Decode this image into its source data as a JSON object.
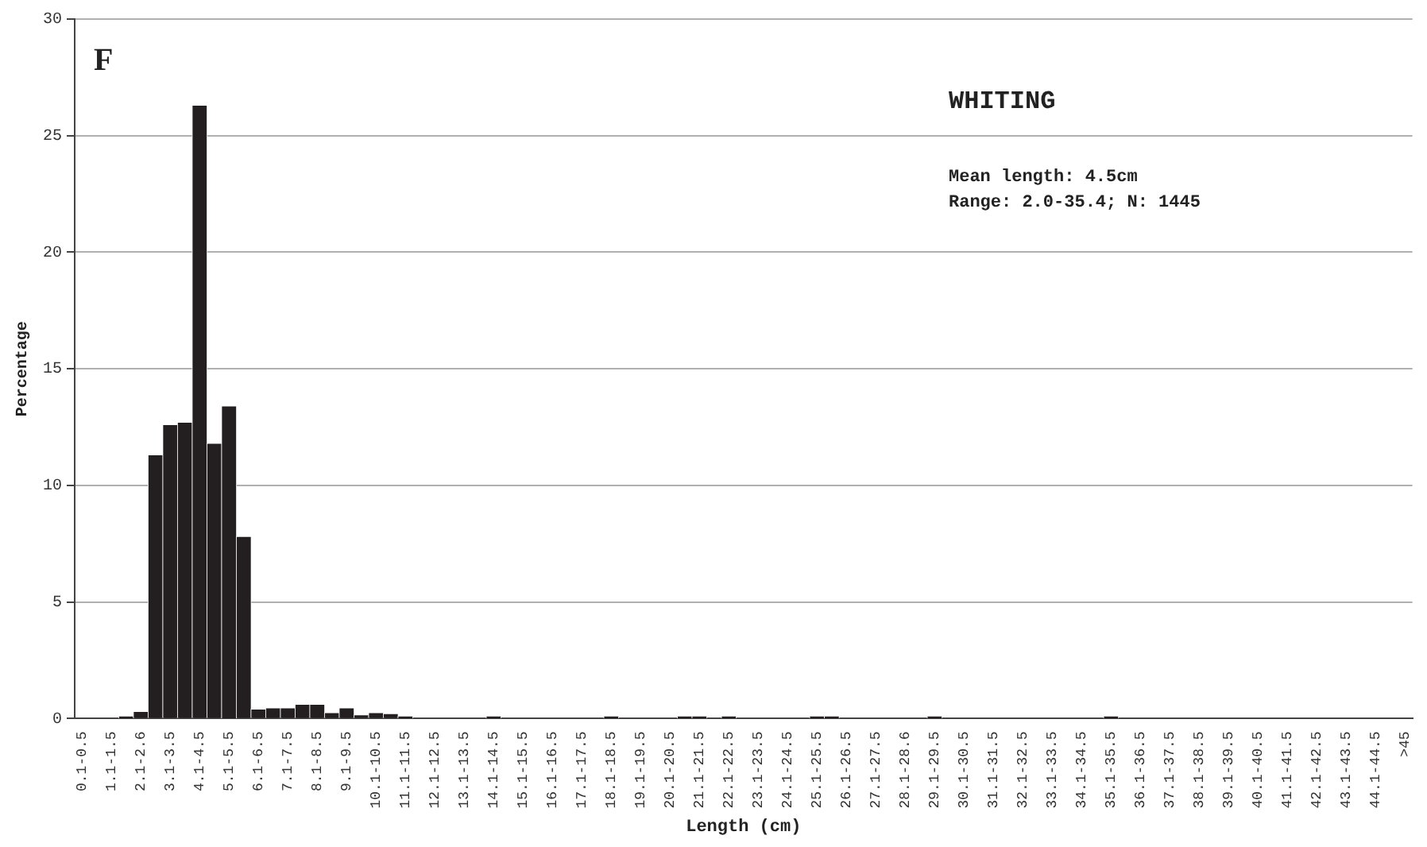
{
  "chart_data": {
    "type": "bar",
    "xlabel": "Length (cm)",
    "ylabel": "Percentage",
    "annotations": [
      "F",
      "WHITING",
      "Mean length: 4.5cm",
      "Range: 2.0-35.4; N: 1445"
    ],
    "categories": [
      "0.1-0.5",
      null,
      "1.1-1.5",
      null,
      "2.1-2.6",
      null,
      "3.1-3.5",
      null,
      "4.1-4.5",
      null,
      "5.1-5.5",
      null,
      "6.1-6.5",
      null,
      "7.1-7.5",
      null,
      "8.1-8.5",
      null,
      "9.1-9.5",
      null,
      "10.1-10.5",
      null,
      "11.1-11.5",
      null,
      "12.1-12.5",
      null,
      "13.1-13.5",
      null,
      "14.1-14.5",
      null,
      "15.1-15.5",
      null,
      "16.1-16.5",
      null,
      "17.1-17.5",
      null,
      "18.1-18.5",
      null,
      "19.1-19.5",
      null,
      "20.1-20.5",
      null,
      "21.1-21.5",
      null,
      "22.1-22.5",
      null,
      "23.1-23.5",
      null,
      "24.1-24.5",
      null,
      "25.1-25.5",
      null,
      "26.1-26.5",
      null,
      "27.1-27.5",
      null,
      "28.1-28.6",
      null,
      "29.1-29.5",
      null,
      "30.1-30.5",
      null,
      "31.1-31.5",
      null,
      "32.1-32.5",
      null,
      "33.1-33.5",
      null,
      "34.1-34.5",
      null,
      "35.1-35.5",
      null,
      "36.1-36.5",
      null,
      "37.1-37.5",
      null,
      "38.1-38.5",
      null,
      "39.1-39.5",
      null,
      "40.1-40.5",
      null,
      "41.1-41.5",
      null,
      "42.1-42.5",
      null,
      "43.1-43.5",
      null,
      "44.1-44.5",
      null,
      ">45"
    ],
    "values": [
      0,
      0,
      0,
      0.1,
      0.3,
      11.3,
      12.6,
      12.7,
      26.3,
      11.8,
      13.4,
      7.8,
      0.4,
      0.45,
      0.45,
      0.6,
      0.6,
      0.25,
      0.45,
      0.15,
      0.25,
      0.2,
      0.1,
      0,
      0,
      0,
      0,
      0,
      0.1,
      0,
      0,
      0,
      0,
      0,
      0,
      0,
      0.1,
      0,
      0,
      0,
      0,
      0.1,
      0.1,
      0,
      0.1,
      0,
      0,
      0,
      0,
      0,
      0.1,
      0.1,
      0,
      0,
      0,
      0,
      0,
      0,
      0.1,
      0,
      0,
      0,
      0,
      0,
      0,
      0,
      0,
      0,
      0,
      0,
      0.1,
      0,
      0,
      0,
      0,
      0,
      0,
      0,
      0,
      0,
      0,
      0,
      0,
      0,
      0,
      0,
      0,
      0,
      0,
      0,
      0
    ],
    "color": "#231f20",
    "ylim": [
      0,
      30
    ],
    "yticks": [
      0,
      5,
      10,
      15,
      20,
      25,
      30
    ],
    "grid": "y",
    "legend": false
  }
}
